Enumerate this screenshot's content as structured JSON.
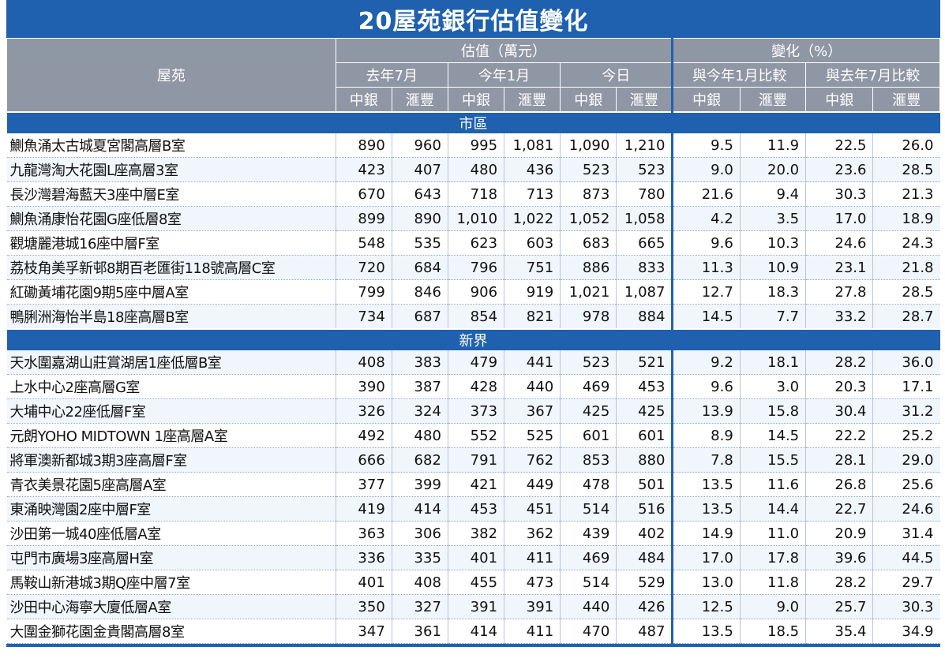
{
  "title": "20屋苑銀行估值變化",
  "header": {
    "property": "屋苑",
    "valuation": "估值（萬元）",
    "change": "變化（%）",
    "periods": [
      "去年7月",
      "今年1月",
      "今日"
    ],
    "compare": [
      "與今年1月比較",
      "與去年7月比較"
    ],
    "banks": [
      "中銀",
      "滙豐"
    ]
  },
  "sections": [
    {
      "name": "市區",
      "rows": [
        {
          "name": "鰂魚涌太古城夏宮閣高層B室",
          "v": [
            "890",
            "960",
            "995",
            "1,081",
            "1,090",
            "1,210"
          ],
          "c": [
            "9.5",
            "11.9",
            "22.5",
            "26.0"
          ]
        },
        {
          "name": "九龍灣淘大花園L座高層3室",
          "v": [
            "423",
            "407",
            "480",
            "436",
            "523",
            "523"
          ],
          "c": [
            "9.0",
            "20.0",
            "23.6",
            "28.5"
          ]
        },
        {
          "name": "長沙灣碧海藍天3座中層E室",
          "v": [
            "670",
            "643",
            "718",
            "713",
            "873",
            "780"
          ],
          "c": [
            "21.6",
            "9.4",
            "30.3",
            "21.3"
          ]
        },
        {
          "name": "鰂魚涌康怡花園G座低層8室",
          "v": [
            "899",
            "890",
            "1,010",
            "1,022",
            "1,052",
            "1,058"
          ],
          "c": [
            "4.2",
            "3.5",
            "17.0",
            "18.9"
          ]
        },
        {
          "name": "觀塘麗港城16座中層F室",
          "v": [
            "548",
            "535",
            "623",
            "603",
            "683",
            "665"
          ],
          "c": [
            "9.6",
            "10.3",
            "24.6",
            "24.3"
          ]
        },
        {
          "name": "荔枝角美孚新邨8期百老匯街118號高層C室",
          "v": [
            "720",
            "684",
            "796",
            "751",
            "886",
            "833"
          ],
          "c": [
            "11.3",
            "10.9",
            "23.1",
            "21.8"
          ]
        },
        {
          "name": "紅磡黃埔花園9期5座中層A室",
          "v": [
            "799",
            "846",
            "906",
            "919",
            "1,021",
            "1,087"
          ],
          "c": [
            "12.7",
            "18.3",
            "27.8",
            "28.5"
          ]
        },
        {
          "name": "鴨脷洲海怡半島18座高層B室",
          "v": [
            "734",
            "687",
            "854",
            "821",
            "978",
            "884"
          ],
          "c": [
            "14.5",
            "7.7",
            "33.2",
            "28.7"
          ]
        }
      ]
    },
    {
      "name": "新界",
      "rows": [
        {
          "name": "天水圍嘉湖山莊賞湖居1座低層B室",
          "v": [
            "408",
            "383",
            "479",
            "441",
            "523",
            "521"
          ],
          "c": [
            "9.2",
            "18.1",
            "28.2",
            "36.0"
          ]
        },
        {
          "name": "上水中心2座高層G室",
          "v": [
            "390",
            "387",
            "428",
            "440",
            "469",
            "453"
          ],
          "c": [
            "9.6",
            "3.0",
            "20.3",
            "17.1"
          ]
        },
        {
          "name": "大埔中心22座低層F室",
          "v": [
            "326",
            "324",
            "373",
            "367",
            "425",
            "425"
          ],
          "c": [
            "13.9",
            "15.8",
            "30.4",
            "31.2"
          ]
        },
        {
          "name": "元朗YOHO MIDTOWN 1座高層A室",
          "v": [
            "492",
            "480",
            "552",
            "525",
            "601",
            "601"
          ],
          "c": [
            "8.9",
            "14.5",
            "22.2",
            "25.2"
          ]
        },
        {
          "name": "將軍澳新都城3期3座高層F室",
          "v": [
            "666",
            "682",
            "791",
            "762",
            "853",
            "880"
          ],
          "c": [
            "7.8",
            "15.5",
            "28.1",
            "29.0"
          ]
        },
        {
          "name": "青衣美景花園5座高層A室",
          "v": [
            "377",
            "399",
            "421",
            "449",
            "478",
            "501"
          ],
          "c": [
            "13.5",
            "11.6",
            "26.8",
            "25.6"
          ]
        },
        {
          "name": "東涌映灣園2座中層F室",
          "v": [
            "419",
            "414",
            "453",
            "451",
            "514",
            "516"
          ],
          "c": [
            "13.5",
            "14.4",
            "22.7",
            "24.6"
          ]
        },
        {
          "name": "沙田第一城40座低層A室",
          "v": [
            "363",
            "306",
            "382",
            "362",
            "439",
            "402"
          ],
          "c": [
            "14.9",
            "11.0",
            "20.9",
            "31.4"
          ]
        },
        {
          "name": "屯門市廣場3座高層H室",
          "v": [
            "336",
            "335",
            "401",
            "411",
            "469",
            "484"
          ],
          "c": [
            "17.0",
            "17.8",
            "39.6",
            "44.5"
          ]
        },
        {
          "name": "馬鞍山新港城3期Q座中層7室",
          "v": [
            "401",
            "408",
            "455",
            "473",
            "514",
            "529"
          ],
          "c": [
            "13.0",
            "11.8",
            "28.2",
            "29.7"
          ]
        },
        {
          "name": "沙田中心海寧大廈低層A室",
          "v": [
            "350",
            "327",
            "391",
            "391",
            "440",
            "426"
          ],
          "c": [
            "12.5",
            "9.0",
            "25.7",
            "30.3"
          ]
        },
        {
          "name": "大圍金獅花園金貴閣高層8室",
          "v": [
            "347",
            "361",
            "414",
            "411",
            "470",
            "487"
          ],
          "c": [
            "13.5",
            "18.5",
            "35.4",
            "34.9"
          ]
        }
      ]
    }
  ]
}
